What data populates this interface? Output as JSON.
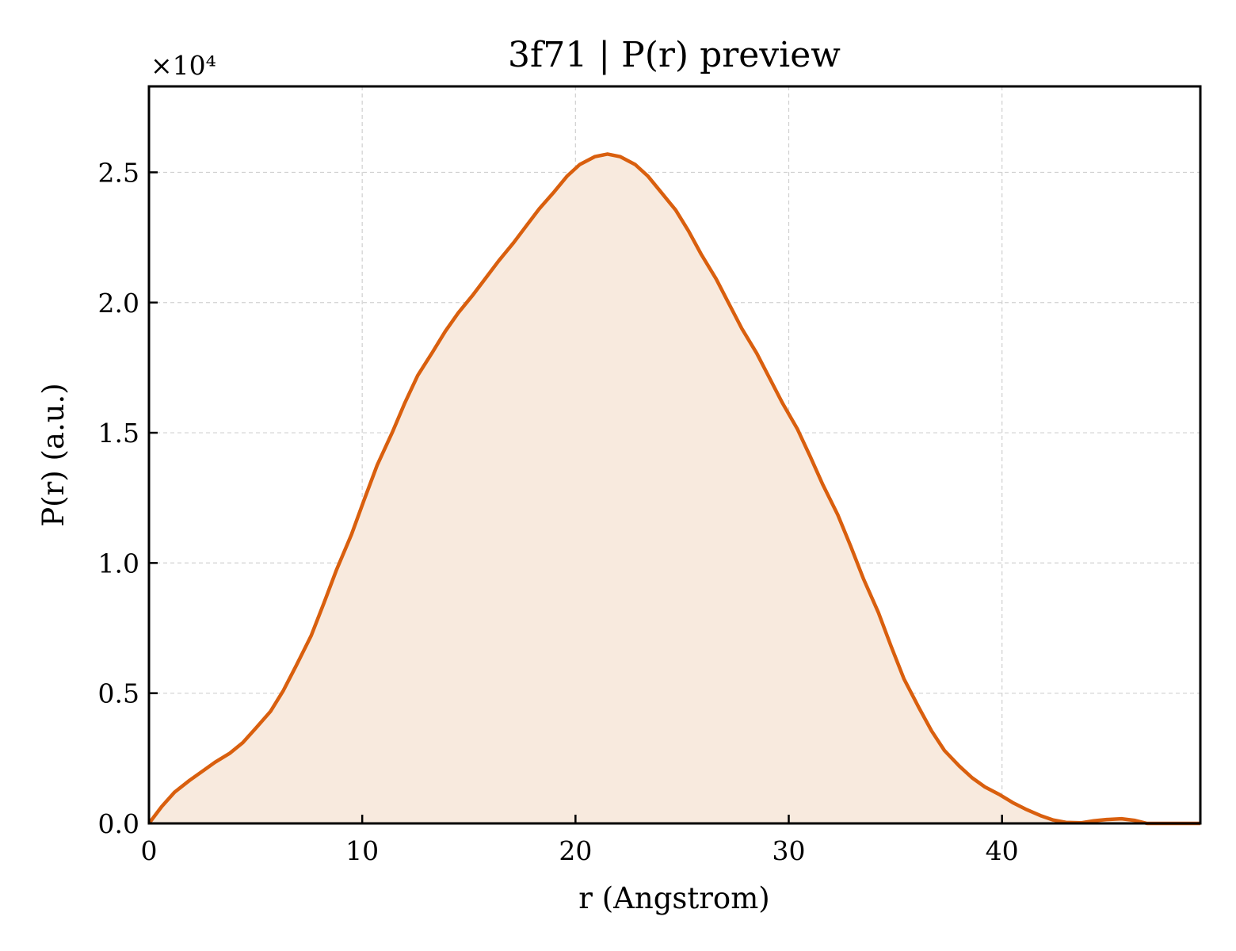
{
  "chart_data": {
    "type": "area",
    "title": "3f71 | P(r) preview",
    "xlabel": "r (Angstrom)",
    "ylabel": "P(r) (a.u.)",
    "y_multiplier_label": "×10⁴",
    "xlim": [
      0,
      49.3
    ],
    "ylim": [
      0,
      28300
    ],
    "x_ticks": [
      0,
      10,
      20,
      30,
      40
    ],
    "x_tick_labels": [
      "0",
      "10",
      "20",
      "30",
      "40"
    ],
    "y_ticks": [
      0,
      5000,
      10000,
      15000,
      20000,
      25000
    ],
    "y_tick_labels": [
      "0.0",
      "0.5",
      "1.0",
      "1.5",
      "2.0",
      "2.5"
    ],
    "grid": true,
    "line_color": "#d95f0e",
    "fill_color": "#f8eade",
    "series": [
      {
        "x": [
          0,
          0.6,
          1.2,
          1.9,
          2.5,
          3.1,
          3.8,
          4.4,
          5.0,
          5.7,
          6.3,
          6.9,
          7.6,
          8.2,
          8.8,
          9.5,
          10.1,
          10.7,
          11.4,
          12.0,
          12.6,
          13.3,
          13.9,
          14.5,
          15.2,
          15.8,
          16.4,
          17.1,
          17.7,
          18.3,
          19.0,
          19.6,
          20.2,
          20.9,
          21.5,
          22.1,
          22.8,
          23.4,
          24.0,
          24.7,
          25.3,
          25.9,
          26.6,
          27.2,
          27.8,
          28.5,
          29.1,
          29.7,
          30.4,
          31.0,
          31.6,
          32.3,
          32.9,
          33.5,
          34.2,
          34.8,
          35.4,
          36.1,
          36.7,
          37.3,
          38.0,
          38.6,
          39.2,
          39.9,
          40.5,
          41.1,
          41.8,
          42.4,
          43.0,
          43.7,
          44.3,
          44.9,
          45.6,
          46.2,
          46.8,
          47.5,
          48.1,
          48.7,
          49.3
        ],
        "y": [
          0,
          650,
          1200,
          1650,
          2000,
          2350,
          2700,
          3100,
          3650,
          4300,
          5100,
          6050,
          7200,
          8450,
          9750,
          11100,
          12450,
          13750,
          15000,
          16150,
          17200,
          18100,
          18900,
          19600,
          20300,
          20950,
          21600,
          22300,
          22950,
          23600,
          24250,
          24850,
          25300,
          25600,
          25700,
          25600,
          25300,
          24850,
          24250,
          23550,
          22750,
          21850,
          20900,
          19950,
          19000,
          18050,
          17100,
          16150,
          15150,
          14100,
          13000,
          11850,
          10650,
          9400,
          8100,
          6800,
          5550,
          4450,
          3550,
          2800,
          2200,
          1750,
          1400,
          1100,
          800,
          550,
          300,
          130,
          40,
          20,
          100,
          150,
          180,
          120,
          0,
          0,
          0,
          0,
          0
        ]
      }
    ]
  }
}
